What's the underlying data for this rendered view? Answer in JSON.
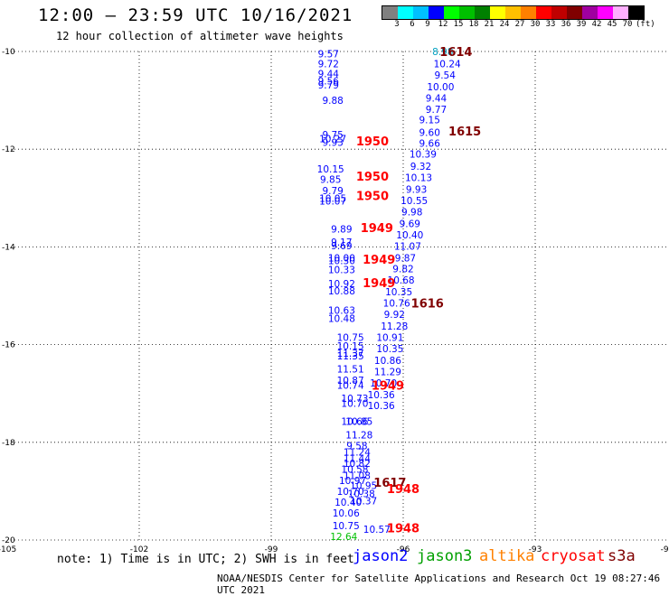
{
  "header": {
    "title": "12:00 – 23:59 UTC 10/16/2021",
    "subtitle": "12 hour collection of altimeter wave heights"
  },
  "colorbar": {
    "colors": [
      "#808080",
      "#00ffff",
      "#00c0ff",
      "#0000ff",
      "#00ff00",
      "#00c000",
      "#008000",
      "#ffff00",
      "#ffc000",
      "#ff8000",
      "#ff0000",
      "#c00000",
      "#800000",
      "#a000a0",
      "#ff00ff",
      "#ffb0ff",
      "#000000"
    ],
    "labels": [
      "3",
      "6",
      "9",
      "12",
      "15",
      "18",
      "21",
      "24",
      "27",
      "30",
      "33",
      "36",
      "39",
      "42",
      "45",
      "70"
    ],
    "unit": "(ft)"
  },
  "footer": {
    "note": "note: 1) Time is in UTC; 2) SWH is in feet",
    "credit": "NOAA/NESDIS Center for Satellite Applications and Research   Oct 19 08:27:46 UTC 2021",
    "satellites": [
      {
        "name": "jason2",
        "color": "#0000ff"
      },
      {
        "name": "jason3",
        "color": "#00a000"
      },
      {
        "name": "altika",
        "color": "#ff8000"
      },
      {
        "name": "cryosat",
        "color": "#ff0000"
      },
      {
        "name": "s3a",
        "color": "#800000"
      }
    ]
  },
  "chart_data": {
    "type": "scatter",
    "xlim": [
      -105,
      -90
    ],
    "ylim": [
      -20,
      -10
    ],
    "xticks": [
      -105,
      -102,
      -99,
      -96,
      -93,
      -90
    ],
    "yticks": [
      -10,
      -12,
      -14,
      -16,
      -18,
      -20
    ],
    "tick_labels_x": [
      "-105",
      "-102",
      "-99",
      "-96",
      "-93",
      "-90"
    ],
    "tick_labels_y": [
      "-10",
      "-12",
      "-14",
      "-16",
      "-18",
      "-20"
    ],
    "grid": true,
    "points": [
      {
        "x": -97.7,
        "y": -10.05,
        "label": "9.57",
        "color": "#0000ff"
      },
      {
        "x": -97.7,
        "y": -10.25,
        "label": "9.72",
        "color": "#0000ff"
      },
      {
        "x": -97.7,
        "y": -10.45,
        "label": "9.44",
        "color": "#0000ff"
      },
      {
        "x": -97.7,
        "y": -10.6,
        "label": "9.56",
        "color": "#0000ff"
      },
      {
        "x": -97.7,
        "y": -10.68,
        "label": "9.79",
        "color": "#0000ff"
      },
      {
        "x": -97.6,
        "y": -11.0,
        "label": "9.88",
        "color": "#0000ff"
      },
      {
        "x": -97.6,
        "y": -11.7,
        "label": "9.75",
        "color": "#0000ff"
      },
      {
        "x": -97.6,
        "y": -11.78,
        "label": "10.27",
        "color": "#0000ff"
      },
      {
        "x": -97.6,
        "y": -11.86,
        "label": "9.93",
        "color": "#0000ff"
      },
      {
        "x": -97.65,
        "y": -12.4,
        "label": "10.15",
        "color": "#0000ff"
      },
      {
        "x": -97.65,
        "y": -12.62,
        "label": "9.85",
        "color": "#0000ff"
      },
      {
        "x": -97.6,
        "y": -12.85,
        "label": "9.79",
        "color": "#0000ff"
      },
      {
        "x": -97.6,
        "y": -13.0,
        "label": "10.05",
        "color": "#0000ff"
      },
      {
        "x": -97.6,
        "y": -13.06,
        "label": "10.07",
        "color": "#0000ff"
      },
      {
        "x": -97.4,
        "y": -13.63,
        "label": "9.89",
        "color": "#0000ff"
      },
      {
        "x": -97.4,
        "y": -13.9,
        "label": "9.17",
        "color": "#0000ff"
      },
      {
        "x": -97.4,
        "y": -13.97,
        "label": "9.69",
        "color": "#0000ff"
      },
      {
        "x": -97.4,
        "y": -14.22,
        "label": "10.00",
        "color": "#0000ff"
      },
      {
        "x": -97.4,
        "y": -14.28,
        "label": "10.30",
        "color": "#0000ff"
      },
      {
        "x": -97.4,
        "y": -14.46,
        "label": "10.33",
        "color": "#0000ff"
      },
      {
        "x": -97.4,
        "y": -14.75,
        "label": "10.92",
        "color": "#0000ff"
      },
      {
        "x": -97.4,
        "y": -14.9,
        "label": "10.88",
        "color": "#0000ff"
      },
      {
        "x": -97.4,
        "y": -15.3,
        "label": "10.63",
        "color": "#0000ff"
      },
      {
        "x": -97.4,
        "y": -15.46,
        "label": "10.48",
        "color": "#0000ff"
      },
      {
        "x": -97.2,
        "y": -15.85,
        "label": "10.75",
        "color": "#0000ff"
      },
      {
        "x": -97.2,
        "y": -16.03,
        "label": "10.15",
        "color": "#0000ff"
      },
      {
        "x": -97.2,
        "y": -16.17,
        "label": "11.37",
        "color": "#0000ff"
      },
      {
        "x": -97.2,
        "y": -16.23,
        "label": "11.35",
        "color": "#0000ff"
      },
      {
        "x": -97.2,
        "y": -16.5,
        "label": "11.51",
        "color": "#0000ff"
      },
      {
        "x": -97.2,
        "y": -16.73,
        "label": "10.87",
        "color": "#0000ff"
      },
      {
        "x": -97.2,
        "y": -16.83,
        "label": "10.74",
        "color": "#0000ff"
      },
      {
        "x": -97.1,
        "y": -17.1,
        "label": "10.73",
        "color": "#0000ff"
      },
      {
        "x": -97.1,
        "y": -17.2,
        "label": "10.70",
        "color": "#0000ff"
      },
      {
        "x": -97.1,
        "y": -17.57,
        "label": "10.66",
        "color": "#0000ff"
      },
      {
        "x": -97.0,
        "y": -17.57,
        "label": "10.85",
        "color": "#0000ff"
      },
      {
        "x": -97.0,
        "y": -17.85,
        "label": "11.28",
        "color": "#0000ff"
      },
      {
        "x": -97.05,
        "y": -18.07,
        "label": "9.58",
        "color": "#0000ff"
      },
      {
        "x": -97.05,
        "y": -18.2,
        "label": "11.24",
        "color": "#0000ff"
      },
      {
        "x": -97.05,
        "y": -18.33,
        "label": "11.44",
        "color": "#0000ff"
      },
      {
        "x": -97.05,
        "y": -18.43,
        "label": "10.82",
        "color": "#0000ff"
      },
      {
        "x": -97.1,
        "y": -18.55,
        "label": "10.58",
        "color": "#0000ff"
      },
      {
        "x": -97.05,
        "y": -18.68,
        "label": "11.08",
        "color": "#0000ff"
      },
      {
        "x": -97.15,
        "y": -18.78,
        "label": "10.97",
        "color": "#0000ff"
      },
      {
        "x": -96.9,
        "y": -18.88,
        "label": "10.95",
        "color": "#0000ff"
      },
      {
        "x": -97.2,
        "y": -19.0,
        "label": "10.70",
        "color": "#0000ff"
      },
      {
        "x": -96.95,
        "y": -19.05,
        "label": "10.38",
        "color": "#0000ff"
      },
      {
        "x": -97.25,
        "y": -19.22,
        "label": "10.40",
        "color": "#0000ff"
      },
      {
        "x": -96.9,
        "y": -19.2,
        "label": "10.37",
        "color": "#0000ff"
      },
      {
        "x": -97.3,
        "y": -19.45,
        "label": "10.06",
        "color": "#0000ff"
      },
      {
        "x": -97.3,
        "y": -19.7,
        "label": "10.75",
        "color": "#0000ff"
      },
      {
        "x": -96.6,
        "y": -19.78,
        "label": "10.57",
        "color": "#0000ff"
      },
      {
        "x": -97.35,
        "y": -19.93,
        "label": "12.64",
        "color": "#00c000"
      },
      {
        "x": -95.1,
        "y": -10.0,
        "label": "8.98",
        "color": "#00a0c0"
      },
      {
        "x": -95.0,
        "y": -10.25,
        "label": "10.24",
        "color": "#0000ff"
      },
      {
        "x": -95.05,
        "y": -10.48,
        "label": "9.54",
        "color": "#0000ff"
      },
      {
        "x": -95.15,
        "y": -10.72,
        "label": "10.00",
        "color": "#0000ff"
      },
      {
        "x": -95.25,
        "y": -10.95,
        "label": "9.44",
        "color": "#0000ff"
      },
      {
        "x": -95.25,
        "y": -11.18,
        "label": "9.77",
        "color": "#0000ff"
      },
      {
        "x": -95.4,
        "y": -11.4,
        "label": "9.15",
        "color": "#0000ff"
      },
      {
        "x": -95.4,
        "y": -11.65,
        "label": "9.60",
        "color": "#0000ff"
      },
      {
        "x": -95.4,
        "y": -11.88,
        "label": "9.66",
        "color": "#0000ff"
      },
      {
        "x": -95.55,
        "y": -12.1,
        "label": "10.39",
        "color": "#0000ff"
      },
      {
        "x": -95.6,
        "y": -12.35,
        "label": "9.32",
        "color": "#0000ff"
      },
      {
        "x": -95.65,
        "y": -12.58,
        "label": "10.13",
        "color": "#0000ff"
      },
      {
        "x": -95.7,
        "y": -12.82,
        "label": "9.93",
        "color": "#0000ff"
      },
      {
        "x": -95.75,
        "y": -13.05,
        "label": "10.55",
        "color": "#0000ff"
      },
      {
        "x": -95.8,
        "y": -13.28,
        "label": "9.98",
        "color": "#0000ff"
      },
      {
        "x": -95.85,
        "y": -13.52,
        "label": "9.69",
        "color": "#0000ff"
      },
      {
        "x": -95.85,
        "y": -13.75,
        "label": "10.40",
        "color": "#0000ff"
      },
      {
        "x": -95.9,
        "y": -13.98,
        "label": "11.07",
        "color": "#0000ff"
      },
      {
        "x": -95.95,
        "y": -14.22,
        "label": "9.87",
        "color": "#0000ff"
      },
      {
        "x": -96.0,
        "y": -14.45,
        "label": "9.82",
        "color": "#0000ff"
      },
      {
        "x": -96.05,
        "y": -14.68,
        "label": "10.68",
        "color": "#0000ff"
      },
      {
        "x": -96.1,
        "y": -14.92,
        "label": "10.35",
        "color": "#0000ff"
      },
      {
        "x": -96.15,
        "y": -15.15,
        "label": "10.76",
        "color": "#0000ff"
      },
      {
        "x": -96.2,
        "y": -15.38,
        "label": "9.92",
        "color": "#0000ff"
      },
      {
        "x": -96.2,
        "y": -15.62,
        "label": "11.28",
        "color": "#0000ff"
      },
      {
        "x": -96.3,
        "y": -15.85,
        "label": "10.91",
        "color": "#0000ff"
      },
      {
        "x": -96.3,
        "y": -16.08,
        "label": "10.35",
        "color": "#0000ff"
      },
      {
        "x": -96.35,
        "y": -16.32,
        "label": "10.86",
        "color": "#0000ff"
      },
      {
        "x": -96.35,
        "y": -16.55,
        "label": "11.29",
        "color": "#0000ff"
      },
      {
        "x": -96.45,
        "y": -16.78,
        "label": "10.70",
        "color": "#0000ff"
      },
      {
        "x": -96.5,
        "y": -17.02,
        "label": "10.36",
        "color": "#0000ff"
      },
      {
        "x": -96.5,
        "y": -17.25,
        "label": "10.36",
        "color": "#0000ff"
      }
    ],
    "pass_labels": [
      {
        "x": -94.8,
        "y": -10.0,
        "label": "1614",
        "color": "#800000"
      },
      {
        "x": -94.6,
        "y": -11.63,
        "label": "1615",
        "color": "#800000"
      },
      {
        "x": -95.45,
        "y": -15.15,
        "label": "1616",
        "color": "#800000"
      },
      {
        "x": -96.3,
        "y": -18.82,
        "label": "1617",
        "color": "#800000"
      },
      {
        "x": -96.7,
        "y": -11.83,
        "label": "1950",
        "color": "#ff0000"
      },
      {
        "x": -96.7,
        "y": -12.55,
        "label": "1950",
        "color": "#ff0000"
      },
      {
        "x": -96.7,
        "y": -12.95,
        "label": "1950",
        "color": "#ff0000"
      },
      {
        "x": -96.6,
        "y": -13.6,
        "label": "1949",
        "color": "#ff0000"
      },
      {
        "x": -96.55,
        "y": -14.25,
        "label": "1949",
        "color": "#ff0000"
      },
      {
        "x": -96.55,
        "y": -14.73,
        "label": "1949",
        "color": "#ff0000"
      },
      {
        "x": -96.35,
        "y": -16.83,
        "label": "1949",
        "color": "#ff0000"
      },
      {
        "x": -96.0,
        "y": -18.95,
        "label": "1948",
        "color": "#ff0000"
      },
      {
        "x": -96.0,
        "y": -19.75,
        "label": "1948",
        "color": "#ff0000"
      }
    ]
  }
}
